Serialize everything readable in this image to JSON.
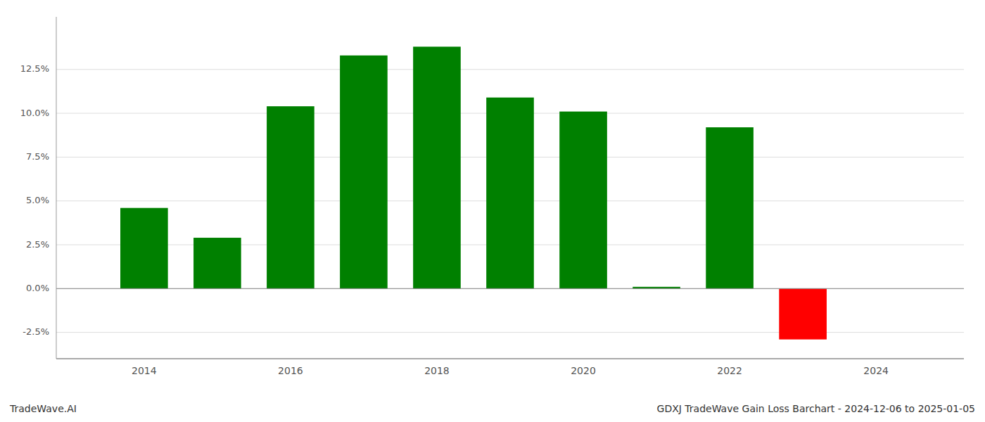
{
  "chart_data": {
    "type": "bar",
    "title": "GDXJ TradeWave Gain Loss Barchart - 2024-12-06 to 2025-01-05",
    "annotations": [
      "TradeWave.AI"
    ],
    "x": [
      2014,
      2015,
      2016,
      2017,
      2018,
      2019,
      2020,
      2021,
      2022,
      2023
    ],
    "values": [
      0.046,
      0.029,
      0.104,
      0.133,
      0.138,
      0.109,
      0.101,
      0.001,
      0.092,
      -0.029
    ],
    "colors": [
      "#008000",
      "#008000",
      "#008000",
      "#008000",
      "#008000",
      "#008000",
      "#008000",
      "#008000",
      "#008000",
      "#ff0000"
    ],
    "xlim": [
      2012.8,
      2025.2
    ],
    "xticks": [
      2014,
      2016,
      2018,
      2020,
      2022,
      2024
    ],
    "ylim": [
      -0.04,
      0.155
    ],
    "yticks": [
      {
        "value": -0.025,
        "label": "-2.5%"
      },
      {
        "value": 0.0,
        "label": "0.0%"
      },
      {
        "value": 0.025,
        "label": "2.5%"
      },
      {
        "value": 0.05,
        "label": "5.0%"
      },
      {
        "value": 0.075,
        "label": "7.5%"
      },
      {
        "value": 0.1,
        "label": "10.0%"
      },
      {
        "value": 0.125,
        "label": "12.5%"
      }
    ],
    "grid": true
  }
}
